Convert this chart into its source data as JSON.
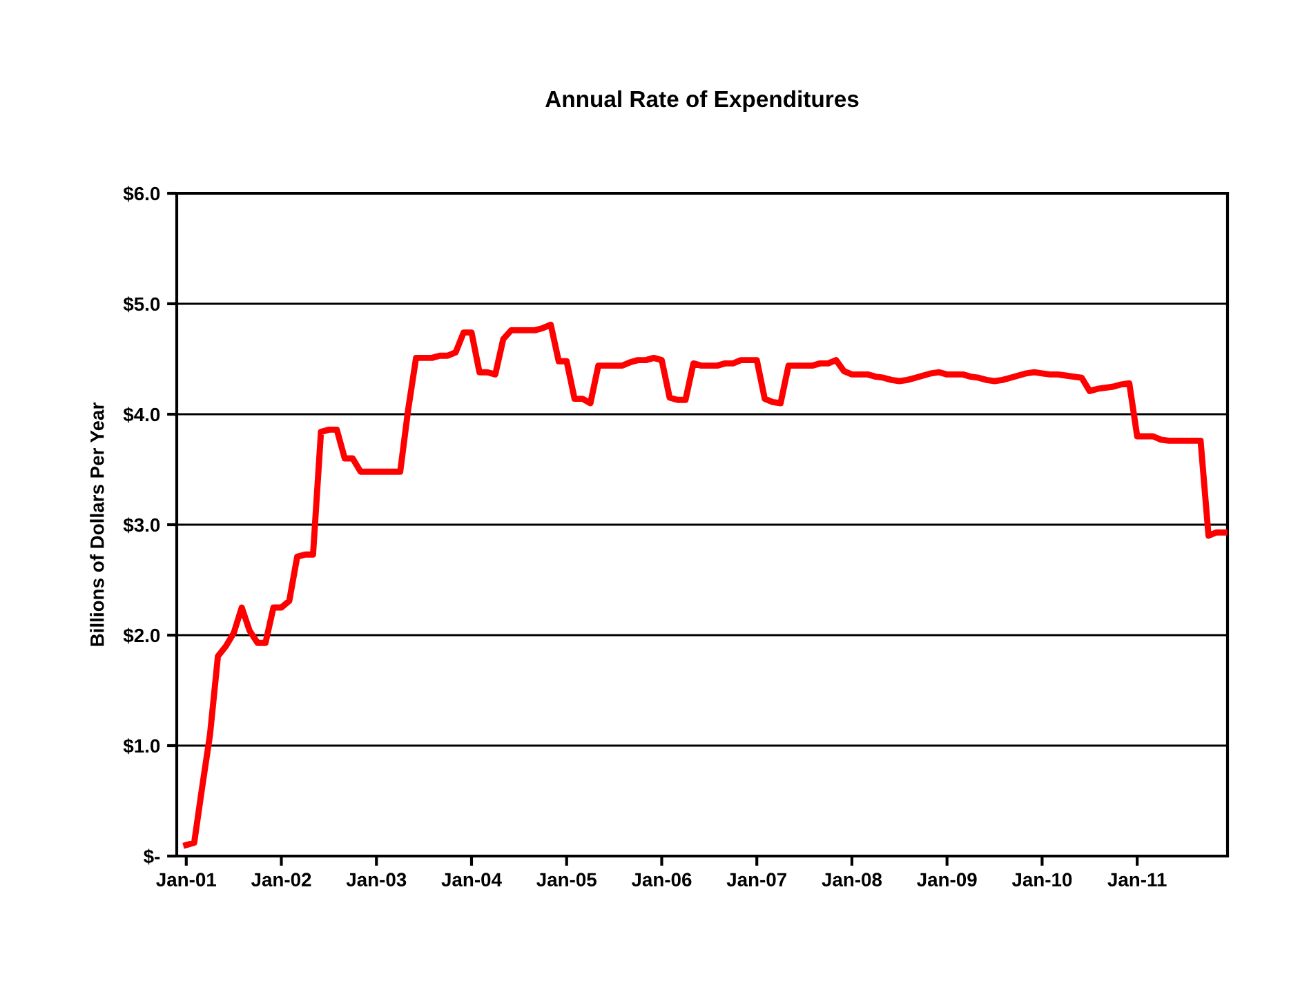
{
  "chart_data": {
    "type": "line",
    "title": "Annual Rate of Expenditures",
    "ylabel": "Billions of Dollars Per Year",
    "categories": [
      "Jan-01",
      null,
      null,
      null,
      null,
      null,
      null,
      null,
      null,
      null,
      null,
      null,
      "Jan-02",
      null,
      null,
      null,
      null,
      null,
      null,
      null,
      null,
      null,
      null,
      null,
      "Jan-03",
      null,
      null,
      null,
      null,
      null,
      null,
      null,
      null,
      null,
      null,
      null,
      "Jan-04",
      null,
      null,
      null,
      null,
      null,
      null,
      null,
      null,
      null,
      null,
      null,
      "Jan-05",
      null,
      null,
      null,
      null,
      null,
      null,
      null,
      null,
      null,
      null,
      null,
      "Jan-06",
      null,
      null,
      null,
      null,
      null,
      null,
      null,
      null,
      null,
      null,
      null,
      "Jan-07",
      null,
      null,
      null,
      null,
      null,
      null,
      null,
      null,
      null,
      null,
      null,
      "Jan-08",
      null,
      null,
      null,
      null,
      null,
      null,
      null,
      null,
      null,
      null,
      null,
      "Jan-09",
      null,
      null,
      null,
      null,
      null,
      null,
      null,
      null,
      null,
      null,
      null,
      "Jan-10",
      null,
      null,
      null,
      null,
      null,
      null,
      null,
      null,
      null,
      null,
      null,
      "Jan-11",
      null,
      null,
      null,
      null,
      null,
      null,
      null,
      null,
      null,
      null,
      null
    ],
    "series": [
      {
        "color": "#ff0000",
        "values": [
          0.1,
          0.12,
          0.62,
          1.1,
          1.81,
          1.9,
          2.02,
          2.25,
          2.04,
          1.93,
          1.93,
          2.25,
          2.25,
          2.31,
          2.71,
          2.73,
          2.73,
          3.84,
          3.86,
          3.86,
          3.6,
          3.6,
          3.48,
          3.48,
          3.48,
          3.48,
          3.48,
          3.48,
          4.04,
          4.51,
          4.51,
          4.51,
          4.53,
          4.53,
          4.56,
          4.74,
          4.74,
          4.38,
          4.38,
          4.36,
          4.68,
          4.76,
          4.76,
          4.76,
          4.76,
          4.78,
          4.81,
          4.48,
          4.48,
          4.14,
          4.14,
          4.1,
          4.44,
          4.44,
          4.44,
          4.44,
          4.47,
          4.49,
          4.49,
          4.51,
          4.49,
          4.15,
          4.13,
          4.13,
          4.46,
          4.44,
          4.44,
          4.44,
          4.46,
          4.46,
          4.49,
          4.49,
          4.49,
          4.14,
          4.11,
          4.1,
          4.44,
          4.44,
          4.44,
          4.44,
          4.46,
          4.46,
          4.49,
          4.39,
          4.36,
          4.36,
          4.36,
          4.34,
          4.33,
          4.31,
          4.3,
          4.31,
          4.33,
          4.35,
          4.37,
          4.38,
          4.36,
          4.36,
          4.36,
          4.34,
          4.33,
          4.31,
          4.3,
          4.31,
          4.33,
          4.35,
          4.37,
          4.38,
          4.37,
          4.36,
          4.36,
          4.35,
          4.34,
          4.33,
          4.21,
          4.23,
          4.24,
          4.25,
          4.27,
          4.28,
          3.8,
          3.8,
          3.8,
          3.77,
          3.76,
          3.76,
          3.76,
          3.76,
          3.76,
          2.9,
          2.93,
          2.93
        ]
      }
    ],
    "ylim": [
      0,
      6
    ],
    "yticks": [
      {
        "value": 0,
        "label": "$-"
      },
      {
        "value": 1,
        "label": "$1.0"
      },
      {
        "value": 2,
        "label": "$2.0"
      },
      {
        "value": 3,
        "label": "$3.0"
      },
      {
        "value": 4,
        "label": "$4.0"
      },
      {
        "value": 5,
        "label": "$5.0"
      },
      {
        "value": 6,
        "label": "$6.0"
      }
    ],
    "grid": "y",
    "marker": "none",
    "line_style": "solid",
    "legend": false
  }
}
